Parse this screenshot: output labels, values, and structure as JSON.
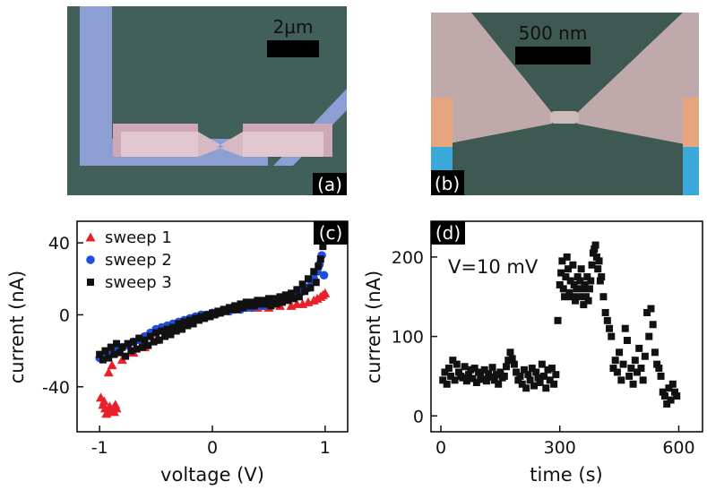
{
  "panel_a": {
    "label": "(a)",
    "scalebar_label": "2μm",
    "colors": {
      "background": "#3f5a54",
      "lead": "#8d9ed4",
      "pad": "#cfa8b6",
      "pad_light": "#e2c7cf"
    }
  },
  "panel_b": {
    "label": "(b)",
    "scalebar_label": "500 nm",
    "colors": {
      "background": "#3e5852",
      "electrode": "#bfa9ab",
      "contact_orange": "#e6a57e",
      "contact_blue": "#3aa9da"
    }
  },
  "chart_data": [
    {
      "panel": "(c)",
      "type": "scatter",
      "xlabel": "voltage (V)",
      "ylabel": "current (nA)",
      "xlim": [
        -1.2,
        1.2
      ],
      "ylim": [
        -65,
        52
      ],
      "xticks": [
        -1,
        0,
        1
      ],
      "xtick_labels": [
        "-1",
        "0",
        "1"
      ],
      "yticks": [
        -40,
        0,
        40
      ],
      "ytick_labels": [
        "-40",
        "0",
        "40"
      ],
      "legend_position": "top-left",
      "series": [
        {
          "name": "sweep 1",
          "color": "#e8202a",
          "marker": "triangle",
          "x": [
            -0.97,
            -0.95,
            -0.93,
            -0.9,
            -0.88,
            -0.86,
            -0.99,
            -0.94,
            -0.91,
            -0.87,
            -0.85,
            -0.96,
            -0.92,
            -0.89,
            -0.8,
            -0.7,
            -0.6,
            -0.5,
            -0.4,
            -0.3,
            -0.2,
            -0.1,
            0.0,
            0.1,
            0.2,
            0.3,
            0.4,
            0.5,
            0.6,
            0.7,
            0.75,
            0.8,
            0.85,
            0.9,
            0.93,
            0.96,
            0.98,
            1.0
          ],
          "y": [
            -50,
            -52,
            -54,
            -53,
            -52,
            -50,
            -46,
            -55,
            -51,
            -54,
            -52,
            -48,
            -32,
            -28,
            -25,
            -21,
            -18,
            -14,
            -10,
            -7,
            -4,
            -1,
            1,
            2,
            3,
            4,
            4,
            4,
            5,
            5,
            6,
            6,
            7,
            8,
            9,
            10,
            11,
            12
          ]
        },
        {
          "name": "sweep 2",
          "color": "#1f4fe0",
          "marker": "circle",
          "x": [
            -1.0,
            -0.95,
            -0.9,
            -0.85,
            -0.8,
            -0.75,
            -0.7,
            -0.65,
            -0.6,
            -0.55,
            -0.5,
            -0.45,
            -0.4,
            -0.35,
            -0.3,
            -0.25,
            -0.2,
            -0.15,
            -0.1,
            -0.05,
            0.0,
            0.05,
            0.1,
            0.15,
            0.2,
            0.25,
            0.3,
            0.35,
            0.4,
            0.45,
            0.5,
            0.55,
            0.6,
            0.65,
            0.7,
            0.75,
            0.8,
            0.85,
            0.88,
            0.9,
            0.93,
            0.95,
            0.97,
            0.99
          ],
          "y": [
            -24,
            -22,
            -20,
            -19,
            -18,
            -17,
            -15,
            -14,
            -12,
            -10,
            -8,
            -7,
            -6,
            -5,
            -4,
            -3,
            -2,
            -1,
            0,
            0,
            1,
            1,
            2,
            2,
            3,
            3,
            4,
            4,
            5,
            5,
            6,
            7,
            8,
            9,
            10,
            11,
            13,
            15,
            18,
            20,
            24,
            28,
            33,
            22
          ]
        },
        {
          "name": "sweep 3",
          "color": "#111111",
          "marker": "square",
          "x": [
            -1.0,
            -0.97,
            -0.95,
            -0.92,
            -0.9,
            -0.87,
            -0.85,
            -0.82,
            -0.8,
            -0.77,
            -0.75,
            -0.72,
            -0.7,
            -0.67,
            -0.65,
            -0.62,
            -0.6,
            -0.57,
            -0.55,
            -0.52,
            -0.5,
            -0.47,
            -0.45,
            -0.42,
            -0.4,
            -0.37,
            -0.35,
            -0.32,
            -0.3,
            -0.27,
            -0.25,
            -0.22,
            -0.2,
            -0.17,
            -0.15,
            -0.12,
            -0.1,
            -0.07,
            -0.05,
            -0.02,
            0.0,
            0.02,
            0.05,
            0.07,
            0.1,
            0.12,
            0.15,
            0.17,
            0.2,
            0.22,
            0.25,
            0.27,
            0.3,
            0.32,
            0.35,
            0.37,
            0.4,
            0.42,
            0.45,
            0.47,
            0.5,
            0.52,
            0.55,
            0.57,
            0.6,
            0.62,
            0.65,
            0.67,
            0.7,
            0.72,
            0.75,
            0.77,
            0.8,
            0.82,
            0.85,
            0.87,
            0.9,
            0.92,
            0.94,
            0.96,
            0.98,
            1.0
          ],
          "y": [
            -22,
            -25,
            -20,
            -24,
            -18,
            -22,
            -16,
            -21,
            -18,
            -23,
            -16,
            -20,
            -15,
            -19,
            -13,
            -18,
            -14,
            -17,
            -12,
            -15,
            -10,
            -14,
            -9,
            -12,
            -8,
            -11,
            -7,
            -9,
            -5,
            -8,
            -4,
            -6,
            -3,
            -5,
            -2,
            -3,
            -1,
            -2,
            0,
            -1,
            1,
            0,
            2,
            1,
            3,
            2,
            4,
            3,
            5,
            3,
            6,
            4,
            7,
            5,
            7,
            5,
            8,
            6,
            8,
            6,
            9,
            5,
            9,
            6,
            10,
            7,
            11,
            8,
            12,
            9,
            14,
            10,
            17,
            13,
            20,
            15,
            24,
            18,
            27,
            31,
            38,
            41
          ]
        }
      ]
    },
    {
      "panel": "(d)",
      "type": "scatter",
      "xlabel": "time (s)",
      "ylabel": "current (nA)",
      "annotation": "V=10 mV",
      "xlim": [
        -25,
        660
      ],
      "ylim": [
        -20,
        245
      ],
      "xticks": [
        0,
        300,
        600
      ],
      "xtick_labels": [
        "0",
        "300",
        "600"
      ],
      "yticks": [
        0,
        100,
        200
      ],
      "ytick_labels": [
        "0",
        "100",
        "200"
      ],
      "series": [
        {
          "name": "current",
          "color": "#111111",
          "marker": "square",
          "x": [
            5,
            10,
            15,
            20,
            25,
            30,
            35,
            40,
            45,
            50,
            55,
            60,
            65,
            70,
            75,
            80,
            85,
            90,
            95,
            100,
            105,
            110,
            115,
            120,
            125,
            130,
            135,
            140,
            145,
            150,
            155,
            160,
            165,
            170,
            175,
            180,
            185,
            190,
            195,
            200,
            205,
            210,
            215,
            220,
            225,
            230,
            235,
            240,
            245,
            250,
            255,
            260,
            265,
            270,
            275,
            280,
            285,
            290,
            295,
            300,
            303,
            306,
            309,
            312,
            315,
            318,
            321,
            324,
            327,
            330,
            333,
            336,
            339,
            342,
            345,
            348,
            351,
            354,
            357,
            360,
            363,
            366,
            369,
            372,
            375,
            378,
            381,
            384,
            387,
            390,
            393,
            396,
            399,
            402,
            405,
            410,
            415,
            420,
            425,
            430,
            435,
            440,
            445,
            450,
            455,
            460,
            465,
            470,
            475,
            480,
            485,
            490,
            495,
            500,
            505,
            510,
            515,
            520,
            525,
            530,
            535,
            540,
            545,
            550,
            555,
            560,
            565,
            570,
            575,
            580,
            585,
            590,
            595
          ],
          "y": [
            45,
            55,
            40,
            60,
            50,
            70,
            45,
            65,
            55,
            50,
            48,
            62,
            44,
            52,
            58,
            47,
            60,
            42,
            55,
            50,
            46,
            58,
            44,
            53,
            49,
            61,
            45,
            52,
            40,
            55,
            48,
            50,
            62,
            70,
            80,
            72,
            65,
            55,
            45,
            50,
            40,
            58,
            35,
            52,
            45,
            60,
            38,
            55,
            48,
            42,
            65,
            50,
            35,
            58,
            45,
            60,
            40,
            52,
            120,
            165,
            180,
            195,
            160,
            150,
            175,
            200,
            185,
            155,
            170,
            150,
            190,
            165,
            145,
            160,
            175,
            150,
            170,
            185,
            160,
            140,
            165,
            150,
            175,
            145,
            160,
            170,
            190,
            205,
            210,
            215,
            200,
            185,
            195,
            170,
            175,
            150,
            130,
            120,
            110,
            100,
            60,
            70,
            55,
            80,
            45,
            65,
            110,
            95,
            50,
            60,
            40,
            70,
            55,
            85,
            60,
            45,
            75,
            130,
            100,
            135,
            115,
            80,
            65,
            60,
            50,
            30,
            25,
            15,
            35,
            20,
            40,
            30,
            25
          ]
        }
      ]
    }
  ]
}
